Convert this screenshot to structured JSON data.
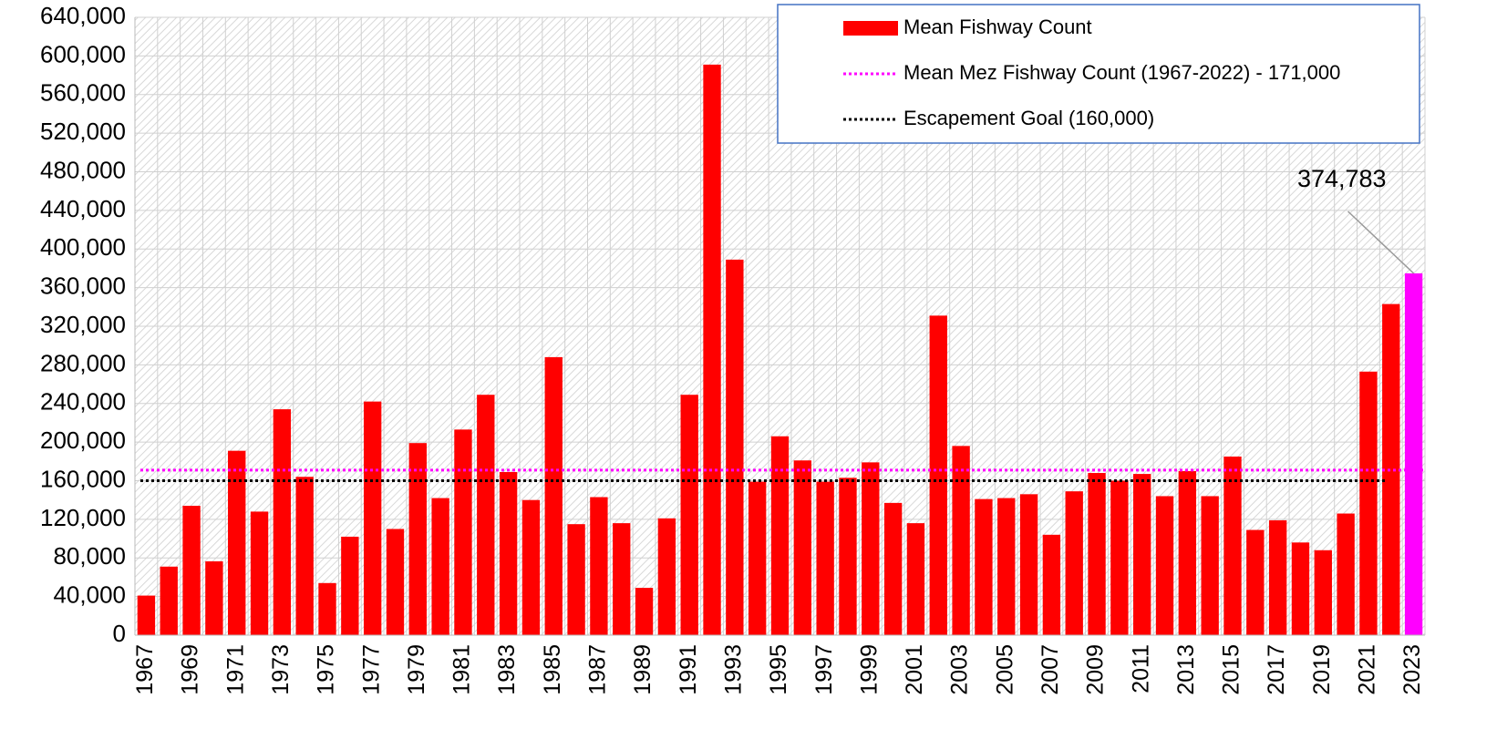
{
  "chart_data": {
    "type": "bar",
    "categories": [
      "1967",
      null,
      "1969",
      null,
      "1971",
      null,
      "1973",
      null,
      "1975",
      null,
      "1977",
      null,
      "1979",
      null,
      "1981",
      null,
      "1983",
      null,
      "1985",
      null,
      "1987",
      null,
      "1989",
      null,
      "1991",
      null,
      "1993",
      null,
      "1995",
      null,
      "1997",
      null,
      "1999",
      null,
      "2001",
      null,
      "2003",
      null,
      "2005",
      null,
      "2007",
      null,
      "2009",
      null,
      "2011",
      null,
      "2013",
      null,
      "2015",
      null,
      "2017",
      null,
      "2019",
      null,
      "2021",
      null,
      "2023"
    ],
    "series": [
      {
        "name": "Mean Fishway Count",
        "color": "#ff0000",
        "colors": [
          "#ff0000",
          "#ff0000",
          "#ff0000",
          "#ff0000",
          "#ff0000",
          "#ff0000",
          "#ff0000",
          "#ff0000",
          "#ff0000",
          "#ff0000",
          "#ff0000",
          "#ff0000",
          "#ff0000",
          "#ff0000",
          "#ff0000",
          "#ff0000",
          "#ff0000",
          "#ff0000",
          "#ff0000",
          "#ff0000",
          "#ff0000",
          "#ff0000",
          "#ff0000",
          "#ff0000",
          "#ff0000",
          "#ff0000",
          "#ff0000",
          "#ff0000",
          "#ff0000",
          "#ff0000",
          "#ff0000",
          "#ff0000",
          "#ff0000",
          "#ff0000",
          "#ff0000",
          "#ff0000",
          "#ff0000",
          "#ff0000",
          "#ff0000",
          "#ff0000",
          "#ff0000",
          "#ff0000",
          "#ff0000",
          "#ff0000",
          "#ff0000",
          "#ff0000",
          "#ff0000",
          "#ff0000",
          "#ff0000",
          "#ff0000",
          "#ff0000",
          "#ff0000",
          "#ff0000",
          "#ff0000",
          "#ff0000",
          "#ff0000",
          "#ff00ff"
        ],
        "values": [
          41000,
          71000,
          134000,
          76500,
          191000,
          128000,
          234000,
          164000,
          54000,
          102000,
          242000,
          110000,
          199000,
          142000,
          213000,
          249000,
          169000,
          140000,
          288000,
          115000,
          143000,
          116000,
          49000,
          121000,
          249000,
          591000,
          389000,
          159000,
          206000,
          181000,
          159000,
          163000,
          179000,
          137000,
          116000,
          331000,
          196000,
          141000,
          142000,
          146000,
          104000,
          149000,
          168000,
          160000,
          167000,
          144000,
          170000,
          144000,
          185000,
          109000,
          119000,
          96000,
          88000,
          126000,
          273000,
          343000,
          374783
        ],
        "value_labels": [
          null,
          null,
          null,
          null,
          null,
          null,
          null,
          null,
          null,
          null,
          null,
          null,
          null,
          null,
          null,
          null,
          null,
          null,
          null,
          null,
          null,
          null,
          null,
          null,
          null,
          null,
          null,
          null,
          null,
          null,
          null,
          null,
          null,
          null,
          null,
          null,
          null,
          null,
          null,
          null,
          null,
          null,
          null,
          null,
          null,
          null,
          null,
          null,
          null,
          null,
          null,
          null,
          null,
          null,
          null,
          null,
          "374,783"
        ]
      }
    ],
    "reference_lines": [
      {
        "name": "Mean Mez Fishway Count (1967-2022) - 171,000",
        "value": 171000,
        "color": "#ff00ff"
      },
      {
        "name": "Escapement Goal (160,000)",
        "value": 160000,
        "color": "#000000"
      }
    ],
    "ylim": [
      0,
      640000
    ],
    "yticks": [
      0,
      {
        "value": 40000,
        "label": "40,000"
      },
      {
        "value": 80000,
        "label": "80,000"
      },
      {
        "value": 120000,
        "label": "120,000"
      },
      {
        "value": 160000,
        "label": "160,000"
      },
      {
        "value": 200000,
        "label": "200,000"
      },
      {
        "value": 240000,
        "label": "240,000"
      },
      {
        "value": 280000,
        "label": "280,000"
      },
      {
        "value": 320000,
        "label": "320,000"
      },
      {
        "value": 360000,
        "label": "360,000"
      },
      {
        "value": 400000,
        "label": "400,000"
      },
      {
        "value": 440000,
        "label": "440,000"
      },
      {
        "value": 480000,
        "label": "480,000"
      },
      {
        "value": 520000,
        "label": "520,000"
      },
      {
        "value": 560000,
        "label": "560,000"
      },
      {
        "value": 600000,
        "label": "600,000"
      },
      {
        "value": 640000,
        "label": "640,000"
      }
    ],
    "grid": true,
    "legend": "top-right"
  }
}
